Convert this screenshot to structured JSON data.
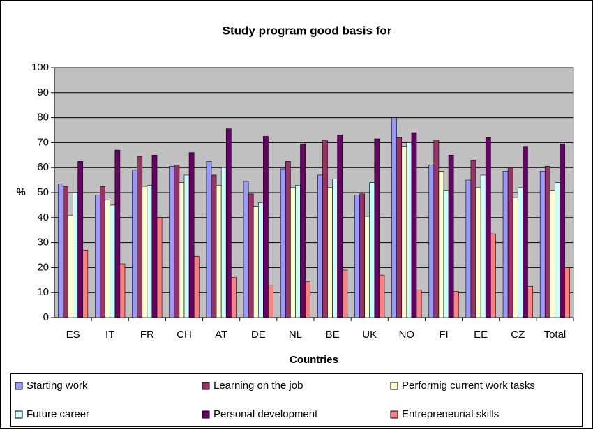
{
  "chart_data": {
    "type": "bar",
    "title": "Study program good basis for",
    "x_label": "Countries",
    "y_label": "%",
    "categories": [
      "ES",
      "IT",
      "FR",
      "CH",
      "AT",
      "DE",
      "NL",
      "BE",
      "UK",
      "NO",
      "FI",
      "EE",
      "CZ",
      "Total"
    ],
    "series": [
      {
        "name": "Starting work",
        "color": "#9999ff",
        "values": [
          53.5,
          49,
          59,
          60.5,
          62.5,
          54.5,
          59.5,
          57,
          49,
          80,
          61,
          55,
          58.5,
          58.5
        ]
      },
      {
        "name": "Learning on the job",
        "color": "#993366",
        "values": [
          52.5,
          52.5,
          64.5,
          61,
          57,
          49.5,
          62.5,
          71,
          49.5,
          72,
          71,
          63,
          60,
          60.5
        ]
      },
      {
        "name": "Performig current work tasks",
        "color": "#ffffcc",
        "values": [
          41,
          47,
          52.5,
          54,
          53,
          44.5,
          52,
          52,
          40.5,
          68.5,
          58.5,
          52,
          48,
          51
        ]
      },
      {
        "name": "Future career",
        "color": "#ccffff",
        "values": [
          50,
          45,
          53,
          57,
          60,
          46,
          53,
          55.5,
          54,
          70,
          51,
          57,
          52,
          54
        ]
      },
      {
        "name": "Personal development",
        "color": "#660066",
        "values": [
          62.5,
          67,
          65,
          66,
          75.5,
          72.5,
          69.5,
          73,
          71.5,
          74,
          65,
          72,
          68.5,
          69.5
        ]
      },
      {
        "name": "Entrepreneurial skills",
        "color": "#ff8080",
        "values": [
          27,
          21.5,
          40,
          24.5,
          16,
          13,
          14.5,
          19,
          17,
          11,
          10.5,
          33.5,
          12.5,
          20
        ]
      }
    ],
    "ylim": [
      0,
      100
    ],
    "yticks": [
      0,
      10,
      20,
      30,
      40,
      50,
      60,
      70,
      80,
      90,
      100
    ],
    "grid": true,
    "legend": "bottom"
  }
}
